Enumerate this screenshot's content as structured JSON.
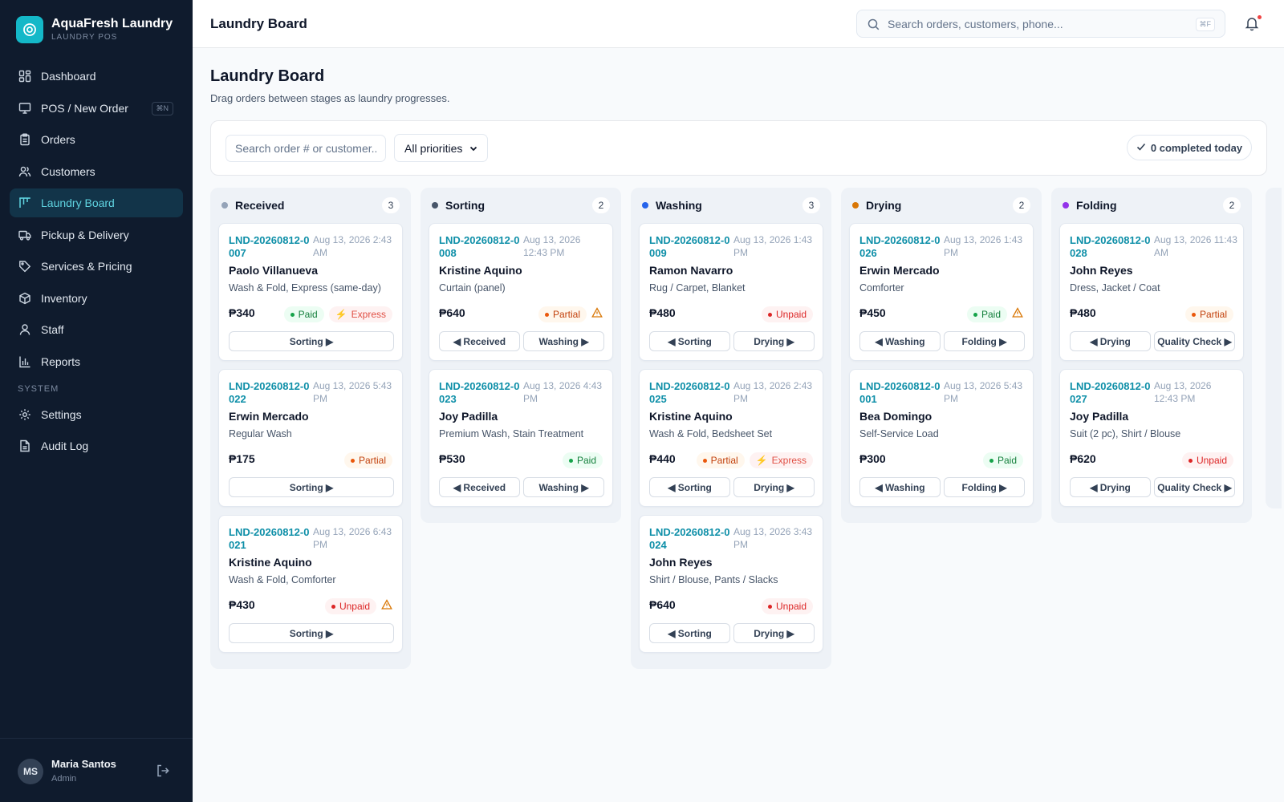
{
  "brand": {
    "name": "AquaFresh Laundry",
    "subtitle": "LAUNDRY POS"
  },
  "nav": {
    "items": [
      {
        "label": "Dashboard",
        "icon": "dashboard-icon"
      },
      {
        "label": "POS / New Order",
        "icon": "monitor-icon",
        "shortcut": "⌘N"
      },
      {
        "label": "Orders",
        "icon": "clipboard-icon"
      },
      {
        "label": "Customers",
        "icon": "users-icon"
      },
      {
        "label": "Laundry Board",
        "icon": "kanban-icon",
        "active": true
      },
      {
        "label": "Pickup & Delivery",
        "icon": "truck-icon"
      },
      {
        "label": "Services & Pricing",
        "icon": "tag-icon"
      },
      {
        "label": "Inventory",
        "icon": "box-icon"
      },
      {
        "label": "Staff",
        "icon": "user-icon"
      },
      {
        "label": "Reports",
        "icon": "bar-chart-icon"
      }
    ],
    "system_label": "SYSTEM",
    "system_items": [
      {
        "label": "Settings",
        "icon": "gear-icon"
      },
      {
        "label": "Audit Log",
        "icon": "file-icon"
      }
    ]
  },
  "user": {
    "initials": "MS",
    "name": "Maria Santos",
    "role": "Admin"
  },
  "header": {
    "title": "Laundry Board",
    "search_placeholder": "Search orders, customers, phone...",
    "search_shortcut": "⌘F"
  },
  "page": {
    "title": "Laundry Board",
    "subtitle": "Drag orders between stages as laundry progresses."
  },
  "toolbar": {
    "search_placeholder": "Search order # or customer...",
    "priority_selected": "All priorities",
    "completed_label": "0 completed today"
  },
  "colors": {
    "accent": "#14b8c8",
    "received": "#94a3b8",
    "sorting": "#475569",
    "washing": "#2563eb",
    "drying": "#d97706",
    "folding": "#9333ea"
  },
  "columns": [
    {
      "key": "received",
      "title": "Received",
      "count": "3",
      "cards": [
        {
          "id": "LND-20260812-0007",
          "date": "Aug 13, 2026 2:43 AM",
          "customer": "Paolo Villanueva",
          "services": "Wash & Fold, Express (same-day)",
          "amount": "₱340",
          "payment": "Paid",
          "express": "Express",
          "warning": false,
          "prev": "",
          "next": "Sorting ▶"
        },
        {
          "id": "LND-20260812-0022",
          "date": "Aug 13, 2026 5:43 PM",
          "customer": "Erwin Mercado",
          "services": "Regular Wash",
          "amount": "₱175",
          "payment": "Partial",
          "express": "",
          "warning": false,
          "prev": "",
          "next": "Sorting ▶"
        },
        {
          "id": "LND-20260812-0021",
          "date": "Aug 13, 2026 6:43 PM",
          "customer": "Kristine Aquino",
          "services": "Wash & Fold, Comforter",
          "amount": "₱430",
          "payment": "Unpaid",
          "express": "",
          "warning": true,
          "prev": "",
          "next": "Sorting ▶"
        }
      ]
    },
    {
      "key": "sorting",
      "title": "Sorting",
      "count": "2",
      "cards": [
        {
          "id": "LND-20260812-0008",
          "date": "Aug 13, 2026 12:43 PM",
          "customer": "Kristine Aquino",
          "services": "Curtain (panel)",
          "amount": "₱640",
          "payment": "Partial",
          "express": "",
          "warning": true,
          "prev": "◀ Received",
          "next": "Washing ▶"
        },
        {
          "id": "LND-20260812-0023",
          "date": "Aug 13, 2026 4:43 PM",
          "customer": "Joy Padilla",
          "services": "Premium Wash, Stain Treatment",
          "amount": "₱530",
          "payment": "Paid",
          "express": "",
          "warning": false,
          "prev": "◀ Received",
          "next": "Washing ▶"
        }
      ]
    },
    {
      "key": "washing",
      "title": "Washing",
      "count": "3",
      "cards": [
        {
          "id": "LND-20260812-0009",
          "date": "Aug 13, 2026 1:43 PM",
          "customer": "Ramon Navarro",
          "services": "Rug / Carpet, Blanket",
          "amount": "₱480",
          "payment": "Unpaid",
          "express": "",
          "warning": false,
          "prev": "◀ Sorting",
          "next": "Drying ▶"
        },
        {
          "id": "LND-20260812-0025",
          "date": "Aug 13, 2026 2:43 PM",
          "customer": "Kristine Aquino",
          "services": "Wash & Fold, Bedsheet Set",
          "amount": "₱440",
          "payment": "Partial",
          "express": "Express",
          "warning": false,
          "prev": "◀ Sorting",
          "next": "Drying ▶"
        },
        {
          "id": "LND-20260812-0024",
          "date": "Aug 13, 2026 3:43 PM",
          "customer": "John Reyes",
          "services": "Shirt / Blouse, Pants / Slacks",
          "amount": "₱640",
          "payment": "Unpaid",
          "express": "",
          "warning": false,
          "prev": "◀ Sorting",
          "next": "Drying ▶"
        }
      ]
    },
    {
      "key": "drying",
      "title": "Drying",
      "count": "2",
      "cards": [
        {
          "id": "LND-20260812-0026",
          "date": "Aug 13, 2026 1:43 PM",
          "customer": "Erwin Mercado",
          "services": "Comforter",
          "amount": "₱450",
          "payment": "Paid",
          "express": "",
          "warning": true,
          "prev": "◀ Washing",
          "next": "Folding ▶"
        },
        {
          "id": "LND-20260812-0001",
          "date": "Aug 13, 2026 5:43 PM",
          "customer": "Bea Domingo",
          "services": "Self-Service Load",
          "amount": "₱300",
          "payment": "Paid",
          "express": "",
          "warning": false,
          "prev": "◀ Washing",
          "next": "Folding ▶"
        }
      ]
    },
    {
      "key": "folding",
      "title": "Folding",
      "count": "2",
      "cards": [
        {
          "id": "LND-20260812-0028",
          "date": "Aug 13, 2026 11:43 AM",
          "customer": "John Reyes",
          "services": "Dress, Jacket / Coat",
          "amount": "₱480",
          "payment": "Partial",
          "express": "",
          "warning": false,
          "prev": "◀ Drying",
          "next": "Quality Check ▶"
        },
        {
          "id": "LND-20260812-0027",
          "date": "Aug 13, 2026 12:43 PM",
          "customer": "Joy Padilla",
          "services": "Suit (2 pc), Shirt / Blouse",
          "amount": "₱620",
          "payment": "Unpaid",
          "express": "",
          "warning": false,
          "prev": "◀ Drying",
          "next": "Quality Check ▶"
        }
      ]
    }
  ]
}
